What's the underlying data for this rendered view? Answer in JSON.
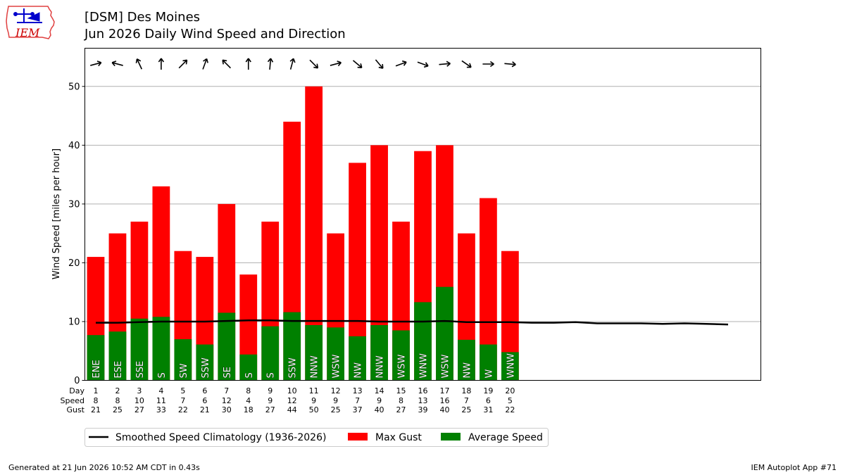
{
  "header": {
    "logo_text": "IEM",
    "title_line1": "[DSM] Des Moines",
    "title_line2": "Jun 2026 Daily Wind Speed and Direction"
  },
  "table_labels": {
    "day": "Day",
    "speed": "Speed",
    "gust": "Gust"
  },
  "legend": {
    "climo_label": "Smoothed Speed Climatology (1936-2026)",
    "gust_label": "Max Gust",
    "avg_label": "Average Speed"
  },
  "footer": {
    "generated": "Generated at 21 Jun 2026 10:52 AM CDT in 0.43s",
    "app": "IEM Autoplot App #71"
  },
  "colors": {
    "gust": "#ff0000",
    "avg": "#008000",
    "climo": "#000000",
    "grid": "#b0b0b0"
  },
  "chart_data": {
    "type": "bar",
    "ylabel": "Wind Speed [miles per hour]",
    "ylim": [
      0,
      56.5
    ],
    "xlim": [
      0.5,
      31.5
    ],
    "yticks": [
      0,
      10,
      20,
      30,
      40,
      50
    ],
    "grid": "y",
    "legend_position": "bottom",
    "days": [
      1,
      2,
      3,
      4,
      5,
      6,
      7,
      8,
      9,
      10,
      11,
      12,
      13,
      14,
      15,
      16,
      17,
      18,
      19,
      20
    ],
    "avg_speed_exact": [
      7.7,
      8.3,
      10.5,
      10.8,
      7.0,
      6.1,
      11.5,
      4.4,
      9.2,
      11.6,
      9.4,
      9.0,
      7.5,
      9.4,
      8.5,
      13.3,
      15.9,
      6.9,
      6.1,
      4.8
    ],
    "speed_labels": [
      8,
      8,
      10,
      11,
      7,
      6,
      12,
      4,
      9,
      12,
      9,
      9,
      7,
      9,
      8,
      13,
      16,
      7,
      6,
      5
    ],
    "max_gust": [
      21,
      25,
      27,
      33,
      22,
      21,
      30,
      18,
      27,
      44,
      50,
      25,
      37,
      40,
      27,
      39,
      40,
      25,
      31,
      22
    ],
    "direction": [
      "ENE",
      "ESE",
      "SSE",
      "S",
      "SW",
      "SSW",
      "SE",
      "S",
      "S",
      "SSW",
      "NNW",
      "WSW",
      "NW",
      "NNW",
      "WSW",
      "WNW",
      "WSW",
      "NW",
      "W",
      "WNW"
    ],
    "arrow_rotation_deg": [
      -15,
      -165,
      -115,
      -90,
      -45,
      -70,
      -135,
      -90,
      -85,
      -75,
      45,
      -15,
      40,
      50,
      -20,
      20,
      -5,
      35,
      0,
      5
    ],
    "climo_days": [
      1,
      2,
      3,
      4,
      5,
      6,
      7,
      8,
      9,
      10,
      11,
      12,
      13,
      14,
      15,
      16,
      17,
      18,
      19,
      20,
      21,
      22,
      23,
      24,
      25,
      26,
      27,
      28,
      29,
      30
    ],
    "climo_speed": [
      9.8,
      9.8,
      9.9,
      10.0,
      10.0,
      10.0,
      10.1,
      10.2,
      10.2,
      10.1,
      10.1,
      10.1,
      10.1,
      10.0,
      10.0,
      10.0,
      10.1,
      9.9,
      9.9,
      9.9,
      9.8,
      9.8,
      9.9,
      9.7,
      9.7,
      9.7,
      9.6,
      9.7,
      9.6,
      9.5
    ]
  }
}
